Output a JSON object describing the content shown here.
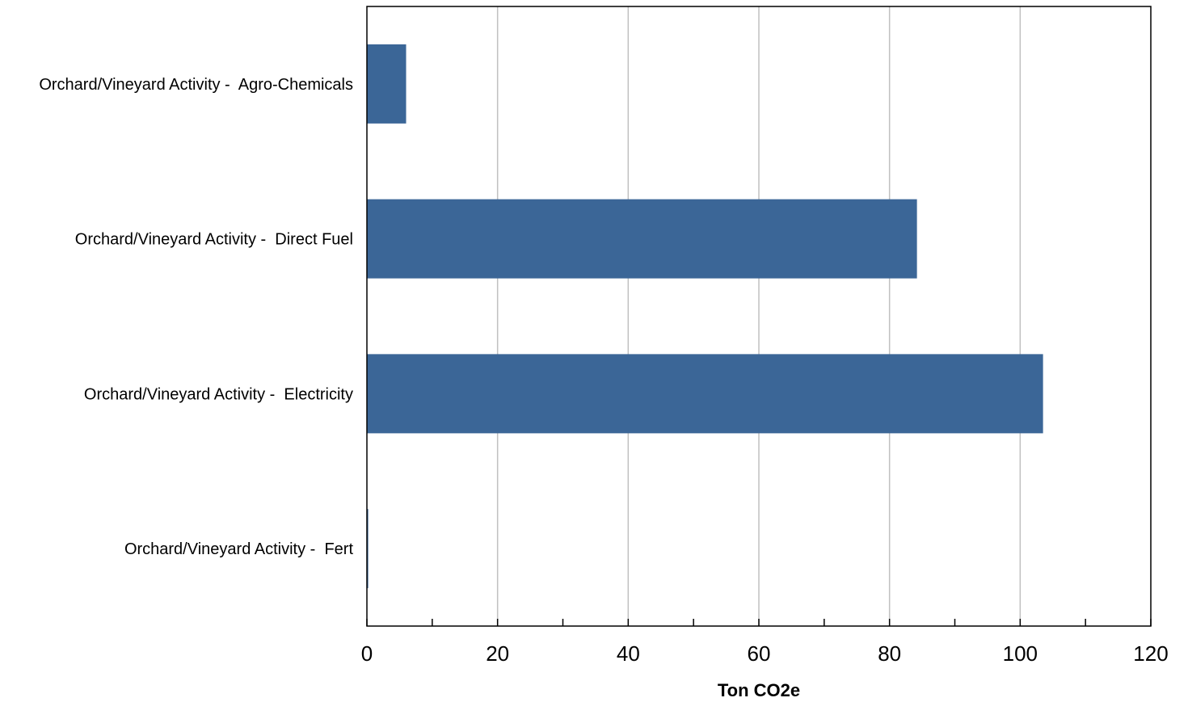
{
  "chart_data": {
    "type": "bar",
    "orientation": "horizontal",
    "categories": [
      "Orchard/Vineyard Activity -  Agro-Chemicals",
      "Orchard/Vineyard Activity -  Direct Fuel",
      "Orchard/Vineyard Activity -  Electricity",
      "Orchard/Vineyard Activity -  Fert"
    ],
    "values": [
      6,
      84.2,
      103.5,
      0.2
    ],
    "xlabel": "Ton CO2e",
    "ylabel": "",
    "xlim": [
      0,
      120
    ],
    "xticks": [
      0,
      20,
      40,
      60,
      80,
      100,
      120
    ],
    "grid": "vertical",
    "legend": "none",
    "bar_color": "#3b6697"
  }
}
